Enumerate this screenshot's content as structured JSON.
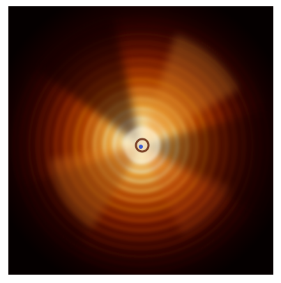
{
  "image": {
    "subject": "",
    "colors": {
      "background": "#000000",
      "outer_dark": "#2a0200",
      "mid": "#7a1200",
      "warm": "#c23a00",
      "bright": "#ff8a1e",
      "core": "#ffe7a6",
      "marker": "#3a5bd1"
    }
  }
}
